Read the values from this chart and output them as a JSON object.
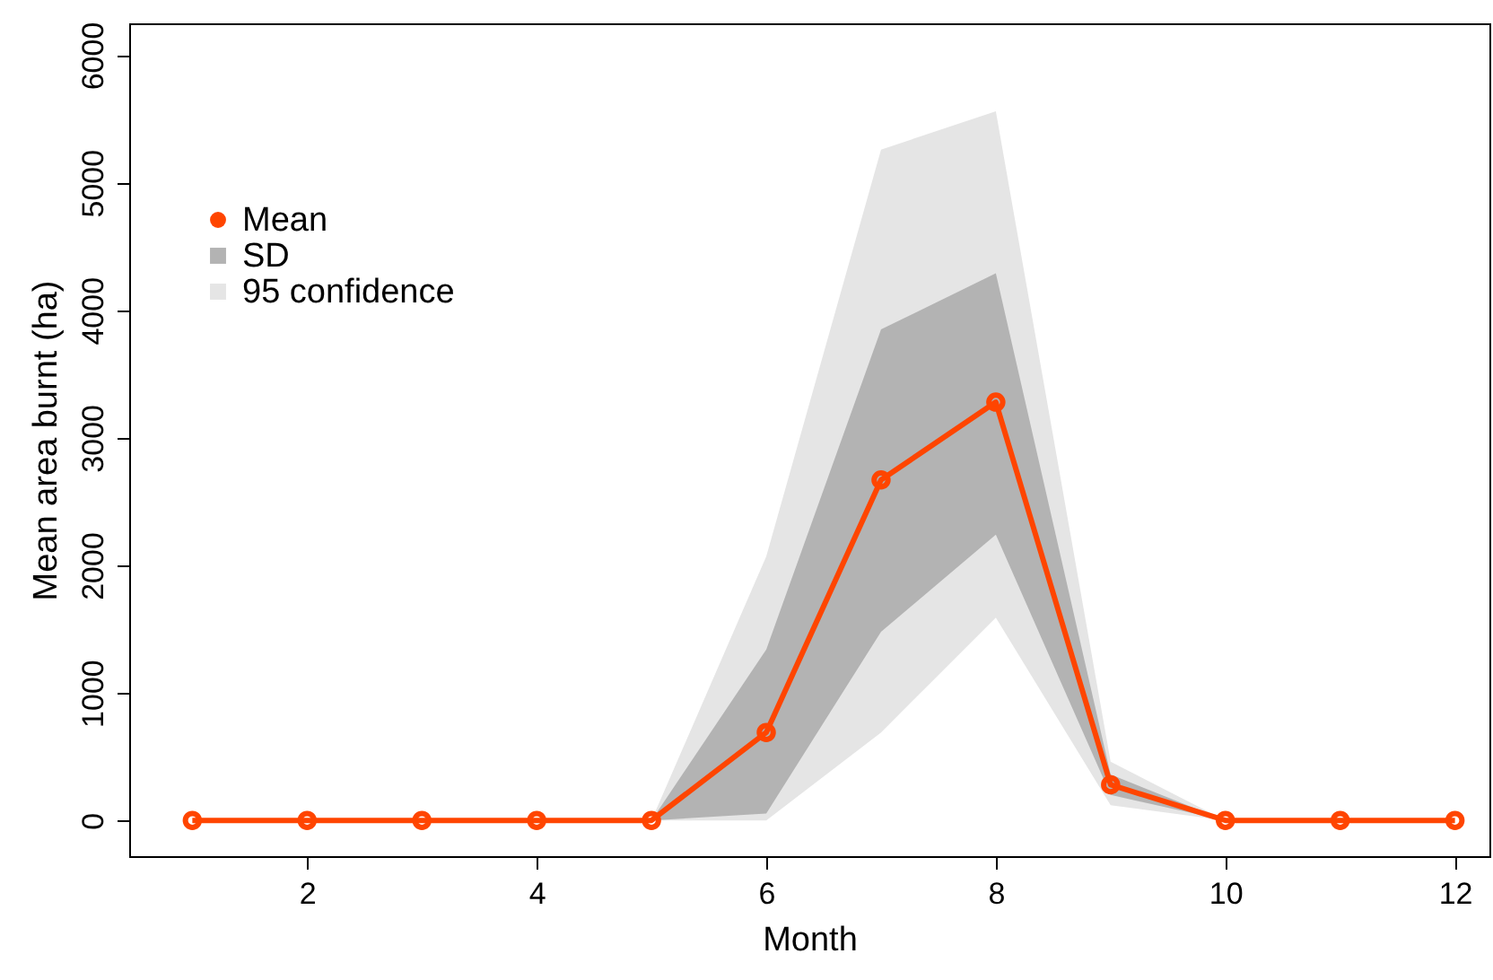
{
  "chart_data": {
    "type": "line",
    "xlabel": "Month",
    "ylabel": "Mean area burnt (ha)",
    "x": [
      1,
      2,
      3,
      4,
      5,
      6,
      7,
      8,
      9,
      10,
      11,
      12
    ],
    "series": [
      {
        "name": "Mean",
        "color": "#ff4500",
        "marker": "circle",
        "values": [
          0,
          0,
          0,
          0,
          0,
          690,
          2670,
          3280,
          280,
          0,
          0,
          0
        ]
      },
      {
        "name": "SD",
        "type": "area",
        "color": "#b3b3b3",
        "values": [
          null,
          null,
          null,
          null,
          null,
          null,
          null,
          null,
          null,
          null,
          null,
          null
        ],
        "lower": [
          0,
          0,
          0,
          0,
          0,
          55,
          1480,
          2240,
          200,
          0,
          0,
          0
        ],
        "upper": [
          0,
          0,
          0,
          0,
          0,
          1340,
          3850,
          4290,
          360,
          0,
          0,
          0
        ]
      },
      {
        "name": "95 confidence",
        "type": "area",
        "color": "#e5e5e5",
        "values": [
          null,
          null,
          null,
          null,
          null,
          null,
          null,
          null,
          null,
          null,
          null,
          null
        ],
        "lower": [
          0,
          0,
          0,
          0,
          0,
          0,
          690,
          1590,
          120,
          0,
          0,
          0
        ],
        "upper": [
          0,
          0,
          0,
          0,
          0,
          2070,
          5260,
          5560,
          460,
          0,
          0,
          0
        ]
      }
    ],
    "xlim": [
      0.45,
      12.3
    ],
    "xticks": [
      2,
      4,
      6,
      8,
      10,
      12
    ],
    "ylim": [
      -280,
      6250
    ],
    "yticks": [
      0,
      1000,
      2000,
      3000,
      4000,
      5000,
      6000
    ],
    "line_style": "solid",
    "legend": "top left"
  }
}
